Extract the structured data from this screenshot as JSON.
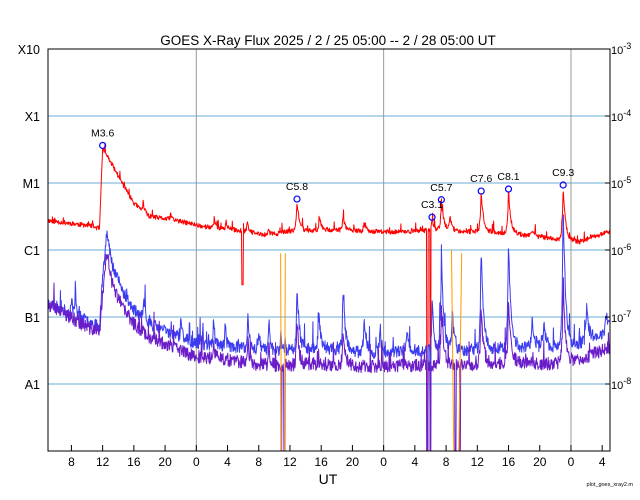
{
  "chart_data": {
    "type": "line",
    "title": "GOES X-Ray Flux   2025  /  2  /  25    05:00 --  2  /  28   05:00    UT",
    "xlabel": "UT",
    "footer": "plot_goes_xray2.m",
    "x_unit": "hours since 2025-02-25 05:00 UT",
    "xlim": [
      0,
      72
    ],
    "ylim": [
      -9,
      -3
    ],
    "y_scale": "log10 W/m^2",
    "class_labels": [
      {
        "label": "X10",
        "log": -3
      },
      {
        "label": "X1",
        "log": -4
      },
      {
        "label": "M1",
        "log": -5
      },
      {
        "label": "C1",
        "log": -6
      },
      {
        "label": "B1",
        "log": -7
      },
      {
        "label": "A1",
        "log": -8
      }
    ],
    "right_ticks": [
      {
        "mant": "10",
        "exp": "-3",
        "log": -3
      },
      {
        "mant": "10",
        "exp": "-4",
        "log": -4
      },
      {
        "mant": "10",
        "exp": "-5",
        "log": -5
      },
      {
        "mant": "10",
        "exp": "-6",
        "log": -6
      },
      {
        "mant": "10",
        "exp": "-7",
        "log": -7
      },
      {
        "mant": "10",
        "exp": "-8",
        "log": -8
      }
    ],
    "x_ticks": [
      {
        "label": "8",
        "x": 3
      },
      {
        "label": "12",
        "x": 7
      },
      {
        "label": "16",
        "x": 11
      },
      {
        "label": "20",
        "x": 15
      },
      {
        "label": "0",
        "x": 19
      },
      {
        "label": "4",
        "x": 23
      },
      {
        "label": "8",
        "x": 27
      },
      {
        "label": "12",
        "x": 31
      },
      {
        "label": "16",
        "x": 35
      },
      {
        "label": "20",
        "x": 39
      },
      {
        "label": "0",
        "x": 43
      },
      {
        "label": "4",
        "x": 47
      },
      {
        "label": "8",
        "x": 51
      },
      {
        "label": "12",
        "x": 55
      },
      {
        "label": "16",
        "x": 59
      },
      {
        "label": "20",
        "x": 63
      },
      {
        "label": "0",
        "x": 67
      },
      {
        "label": "4",
        "x": 71
      }
    ],
    "day_boundaries": [
      19,
      43,
      67
    ],
    "grid_levels": [
      -4,
      -5,
      -6,
      -7,
      -8
    ],
    "flares": [
      {
        "label": "M3.6",
        "x": 7.0,
        "log": -4.44
      },
      {
        "label": "C5.8",
        "x": 31.9,
        "log": -5.24
      },
      {
        "label": "C3.1",
        "x": 49.2,
        "log": -5.51
      },
      {
        "label": "C5.7",
        "x": 50.4,
        "log": -5.25
      },
      {
        "label": "C7.6",
        "x": 55.5,
        "log": -5.12
      },
      {
        "label": "C8.1",
        "x": 59.0,
        "log": -5.09
      },
      {
        "label": "C9.3",
        "x": 66.0,
        "log": -5.03
      }
    ],
    "series": [
      {
        "color": "#ff0000",
        "base": [
          [
            0,
            -5.56
          ],
          [
            5.5,
            -5.64
          ],
          [
            6.6,
            -5.68
          ],
          [
            7.0,
            -4.48
          ],
          [
            8.0,
            -4.68
          ],
          [
            9.5,
            -5.0
          ],
          [
            11,
            -5.3
          ],
          [
            13,
            -5.5
          ],
          [
            16,
            -5.55
          ],
          [
            20,
            -5.65
          ],
          [
            24,
            -5.7
          ],
          [
            28,
            -5.78
          ],
          [
            31,
            -5.72
          ],
          [
            36,
            -5.7
          ],
          [
            40,
            -5.72
          ],
          [
            44,
            -5.73
          ],
          [
            47,
            -5.72
          ],
          [
            50,
            -5.7
          ],
          [
            53,
            -5.72
          ],
          [
            56,
            -5.73
          ],
          [
            60,
            -5.76
          ],
          [
            64,
            -5.82
          ],
          [
            66,
            -5.85
          ],
          [
            68,
            -5.88
          ],
          [
            72,
            -5.72
          ]
        ],
        "spikes": [
          [
            12.2,
            0.16,
            0.15
          ],
          [
            15.7,
            0.09,
            0.2
          ],
          [
            21.3,
            0.18,
            0.15
          ],
          [
            22.8,
            0.12,
            0.2
          ],
          [
            25.5,
            0.16,
            0.2
          ],
          [
            28.2,
            0.1,
            0.2
          ],
          [
            31.9,
            0.46,
            0.3
          ],
          [
            34.8,
            0.18,
            0.3
          ],
          [
            37.8,
            0.2,
            0.3
          ],
          [
            40.5,
            0.12,
            0.3
          ],
          [
            49.2,
            0.2,
            0.2
          ],
          [
            50.4,
            0.45,
            0.3
          ],
          [
            51.5,
            0.22,
            0.25
          ],
          [
            55.5,
            0.6,
            0.3
          ],
          [
            59.0,
            0.66,
            0.28
          ],
          [
            62.0,
            0.1,
            0.3
          ],
          [
            66.0,
            0.82,
            0.3
          ]
        ],
        "dips": [
          [
            24.9,
            -6.52,
            0.1
          ],
          [
            48.6,
            -9.2,
            0.06
          ],
          [
            49.0,
            -9.2,
            0.06
          ]
        ],
        "noise": 0.035,
        "seed": 11
      },
      {
        "color": "#3b3bf0",
        "base": [
          [
            0,
            -6.78
          ],
          [
            2,
            -6.9
          ],
          [
            3.6,
            -6.98
          ],
          [
            5,
            -7.05
          ],
          [
            6.6,
            -7.15
          ],
          [
            7.0,
            -6.4
          ],
          [
            7.5,
            -5.73
          ],
          [
            8.2,
            -6.2
          ],
          [
            9.5,
            -6.6
          ],
          [
            11,
            -6.9
          ],
          [
            13,
            -7.1
          ],
          [
            16,
            -7.25
          ],
          [
            19,
            -7.4
          ],
          [
            22,
            -7.42
          ],
          [
            26,
            -7.48
          ],
          [
            30,
            -7.5
          ],
          [
            34,
            -7.45
          ],
          [
            38,
            -7.5
          ],
          [
            42,
            -7.55
          ],
          [
            45,
            -7.52
          ],
          [
            48,
            -7.5
          ],
          [
            52,
            -7.5
          ],
          [
            56,
            -7.48
          ],
          [
            60,
            -7.45
          ],
          [
            64,
            -7.45
          ],
          [
            68,
            -7.4
          ],
          [
            72,
            -7.2
          ]
        ],
        "spikes": [
          [
            3.0,
            0.3,
            0.15
          ],
          [
            3.5,
            0.45,
            0.15
          ],
          [
            12.3,
            0.3,
            0.2
          ],
          [
            17.0,
            0.25,
            0.2
          ],
          [
            21.2,
            0.5,
            0.15
          ],
          [
            22.7,
            0.35,
            0.15
          ],
          [
            25.6,
            0.55,
            0.2
          ],
          [
            27.0,
            0.3,
            0.2
          ],
          [
            28.3,
            0.5,
            0.15
          ],
          [
            29.8,
            0.3,
            0.15
          ],
          [
            31.9,
            1.05,
            0.25
          ],
          [
            34.7,
            0.55,
            0.25
          ],
          [
            37.8,
            0.85,
            0.3
          ],
          [
            40.5,
            0.55,
            0.3
          ],
          [
            42.5,
            0.3,
            0.3
          ],
          [
            46.0,
            0.3,
            0.3
          ],
          [
            49.2,
            0.9,
            0.2
          ],
          [
            50.4,
            1.5,
            0.3
          ],
          [
            51.8,
            0.6,
            0.25
          ],
          [
            55.5,
            1.5,
            0.3
          ],
          [
            59.0,
            1.6,
            0.3
          ],
          [
            62.0,
            0.4,
            0.3
          ],
          [
            63.5,
            0.4,
            0.3
          ],
          [
            66.0,
            2.2,
            0.3
          ],
          [
            69.0,
            0.5,
            0.3
          ],
          [
            71.5,
            0.3,
            0.3
          ]
        ],
        "dips": [
          [
            48.6,
            -9.2,
            0.06
          ],
          [
            49.0,
            -9.2,
            0.06
          ]
        ],
        "noise": 0.09,
        "seed": 23
      },
      {
        "color": "#6a1cc8",
        "base": [
          [
            0,
            -6.82
          ],
          [
            2,
            -6.95
          ],
          [
            3.6,
            -7.05
          ],
          [
            5,
            -7.15
          ],
          [
            6.6,
            -7.22
          ],
          [
            7.0,
            -6.7
          ],
          [
            7.5,
            -6.0
          ],
          [
            8.2,
            -6.5
          ],
          [
            9.5,
            -6.85
          ],
          [
            11,
            -7.1
          ],
          [
            13,
            -7.3
          ],
          [
            16,
            -7.45
          ],
          [
            19,
            -7.6
          ],
          [
            22,
            -7.62
          ],
          [
            26,
            -7.7
          ],
          [
            30,
            -7.72
          ],
          [
            34,
            -7.7
          ],
          [
            38,
            -7.72
          ],
          [
            42,
            -7.75
          ],
          [
            45,
            -7.72
          ],
          [
            48,
            -7.72
          ],
          [
            52,
            -7.72
          ],
          [
            56,
            -7.7
          ],
          [
            60,
            -7.68
          ],
          [
            64,
            -7.7
          ],
          [
            68,
            -7.65
          ],
          [
            72,
            -7.45
          ]
        ],
        "spikes": [
          [
            21.2,
            0.3,
            0.15
          ],
          [
            25.6,
            0.35,
            0.2
          ],
          [
            28.3,
            0.3,
            0.15
          ],
          [
            31.9,
            0.7,
            0.25
          ],
          [
            37.8,
            0.5,
            0.3
          ],
          [
            50.4,
            0.9,
            0.3
          ],
          [
            55.5,
            0.8,
            0.3
          ],
          [
            59.0,
            0.9,
            0.3
          ],
          [
            66.0,
            1.1,
            0.3
          ]
        ],
        "dips": [
          [
            29.9,
            -9.2,
            0.07
          ],
          [
            30.3,
            -9.2,
            0.07
          ],
          [
            48.6,
            -9.2,
            0.06
          ],
          [
            49.0,
            -9.2,
            0.06
          ],
          [
            52.2,
            -9.2,
            0.07
          ],
          [
            52.8,
            -9.2,
            0.06
          ]
        ],
        "noise": 0.1,
        "seed": 37
      },
      {
        "color": "#ff9900",
        "segments": [
          [
            [
              29.8,
              -6.05
            ],
            [
              29.9,
              -9.2
            ],
            [
              30.3,
              -9.2
            ],
            [
              30.4,
              -6.05
            ]
          ],
          [
            [
              51.7,
              -6.0
            ],
            [
              52.0,
              -9.2
            ],
            [
              52.6,
              -9.2
            ],
            [
              53.0,
              -6.05
            ]
          ]
        ]
      }
    ]
  }
}
